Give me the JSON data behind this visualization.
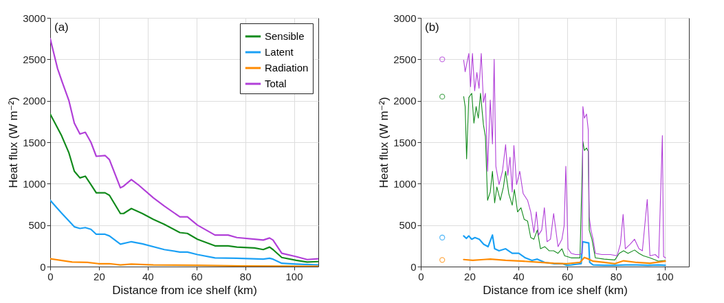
{
  "chart_data": [
    {
      "type": "line",
      "xlabel": "Distance from ice shelf (km)",
      "ylabel": "Heat flux (W m⁻²)",
      "annotations": [
        "(a)"
      ],
      "xlim": [
        0,
        110
      ],
      "ylim": [
        0,
        3000
      ],
      "xticks": [
        0,
        20,
        40,
        60,
        80,
        100
      ],
      "yticks": [
        0,
        500,
        1000,
        1500,
        2000,
        2500,
        3000
      ],
      "grid": true,
      "legend": "top right",
      "series": [
        {
          "name": "Sensible",
          "color": "#118a1b",
          "x": [
            0,
            4.5,
            7.7,
            9.9,
            12.2,
            14.4,
            16.7,
            18.9,
            22.5,
            24.3,
            28.8,
            30.1,
            33.3,
            37.8,
            42.3,
            46.8,
            53.2,
            56.3,
            60.4,
            67.6,
            73,
            76.6,
            83.8,
            87.4,
            90,
            91.4,
            95,
            100.9,
            105.4,
            109.9
          ],
          "values": [
            1840,
            1590,
            1370,
            1150,
            1070,
            1090,
            990,
            890,
            890,
            860,
            640,
            640,
            700,
            640,
            570,
            510,
            410,
            400,
            330,
            250,
            250,
            235,
            225,
            205,
            235,
            205,
            110,
            75,
            55,
            60
          ]
        },
        {
          "name": "Latent",
          "color": "#1aa0f5",
          "x": [
            0,
            4.5,
            9.9,
            12.2,
            14.4,
            16.7,
            18.9,
            22.5,
            24.3,
            28.8,
            33.3,
            37.8,
            46.8,
            53.2,
            56.3,
            60.4,
            67.6,
            76.6,
            87.4,
            90,
            91.4,
            95,
            100.9,
            109.9
          ],
          "values": [
            800,
            650,
            480,
            460,
            470,
            450,
            390,
            390,
            370,
            270,
            300,
            275,
            205,
            175,
            175,
            145,
            105,
            100,
            90,
            100,
            90,
            40,
            30,
            20
          ]
        },
        {
          "name": "Radiation",
          "color": "#ff8a00",
          "x": [
            0,
            9,
            15.3,
            19.8,
            24.3,
            28.8,
            33.3,
            42.3,
            60.4,
            78.4,
            96.4,
            109.9
          ],
          "values": [
            95,
            55,
            50,
            35,
            35,
            20,
            30,
            20,
            15,
            8,
            5,
            3
          ]
        },
        {
          "name": "Total",
          "color": "#b13fd8",
          "x": [
            0,
            3,
            5,
            7.7,
            9.9,
            12.2,
            14.4,
            16.7,
            18.9,
            22.5,
            24.3,
            28.8,
            30.1,
            33.3,
            36,
            42.3,
            46.8,
            53.2,
            56.3,
            60.4,
            67.6,
            73,
            76.6,
            83.8,
            87.4,
            90,
            91.4,
            95,
            100.9,
            105.4,
            109.9
          ],
          "values": [
            2750,
            2390,
            2220,
            2000,
            1730,
            1600,
            1620,
            1500,
            1330,
            1340,
            1290,
            950,
            970,
            1050,
            990,
            830,
            730,
            600,
            600,
            500,
            380,
            380,
            350,
            330,
            320,
            345,
            320,
            160,
            120,
            85,
            95
          ]
        }
      ]
    },
    {
      "type": "line",
      "xlabel": "Distance from ice shelf (km)",
      "ylabel": "Heat flux (W m⁻²)",
      "annotations": [
        "(b)"
      ],
      "xlim": [
        0,
        110
      ],
      "ylim": [
        0,
        3000
      ],
      "xticks": [
        0,
        20,
        40,
        60,
        80,
        100
      ],
      "yticks": [
        0,
        500,
        1000,
        1500,
        2000,
        2500,
        3000
      ],
      "grid": true,
      "series": [
        {
          "color": "#118a1b",
          "x": [
            17.6,
            18.2,
            18.8,
            19.7,
            20.9,
            21.8,
            22.7,
            23.6,
            24.5,
            25.7,
            26.5,
            27.4,
            28.5,
            29.4,
            30.3,
            31.2,
            32.6,
            33.9,
            34.8,
            36.1,
            37.5,
            38.4,
            39.7,
            41.1,
            42.4,
            43.8,
            45.1,
            46.4,
            47.8,
            49.1,
            50.9,
            52.7,
            54.5,
            56.3,
            57.9,
            59,
            61.7,
            65.3,
            66.5,
            67.1,
            68,
            68.7,
            69.1,
            70.2,
            71.6,
            75.2,
            79.6,
            81.4,
            83.2,
            85,
            87.7,
            89.5,
            91.3,
            94,
            97.6,
            100.3
          ],
          "values": [
            2050,
            1930,
            1300,
            2040,
            2090,
            1730,
            1930,
            1790,
            2090,
            1710,
            1570,
            800,
            900,
            1150,
            770,
            960,
            800,
            960,
            1150,
            880,
            740,
            930,
            660,
            710,
            570,
            550,
            350,
            330,
            440,
            215,
            240,
            190,
            190,
            160,
            215,
            130,
            105,
            105,
            1510,
            1400,
            1430,
            1390,
            440,
            330,
            105,
            90,
            80,
            160,
            190,
            160,
            200,
            160,
            130,
            105,
            65,
            75
          ]
        },
        {
          "color": "#1aa0f5",
          "x": [
            17.6,
            18.7,
            19.7,
            20.9,
            22.2,
            24,
            25.8,
            27.6,
            29.4,
            30.3,
            32.1,
            34.8,
            37.5,
            40.2,
            42.9,
            45.6,
            47.8,
            50.9,
            54.5,
            58.1,
            59.9,
            61.7,
            65.8,
            66.4,
            68.9,
            69.3,
            70.7,
            75.2,
            79.6,
            84.1,
            88.6,
            93.1,
            97.6,
            100.3
          ],
          "values": [
            370,
            340,
            370,
            330,
            350,
            330,
            270,
            240,
            380,
            215,
            190,
            215,
            160,
            160,
            105,
            75,
            90,
            50,
            35,
            35,
            15,
            20,
            35,
            300,
            285,
            50,
            20,
            15,
            15,
            20,
            20,
            15,
            20,
            15
          ]
        },
        {
          "color": "#ff8a00",
          "x": [
            17.6,
            21.3,
            25.8,
            28.5,
            34.8,
            41.9,
            49.1,
            54.5,
            59.9,
            65.3,
            67.1,
            68.9,
            70.7,
            75.2,
            79.6,
            83.2,
            88.6,
            94,
            100.3
          ],
          "values": [
            85,
            75,
            85,
            90,
            75,
            65,
            50,
            40,
            35,
            50,
            110,
            90,
            65,
            50,
            35,
            70,
            50,
            40,
            65
          ]
        },
        {
          "color": "#b13fd8",
          "x": [
            17.6,
            18.2,
            19.7,
            20.4,
            21.2,
            22.1,
            23,
            23.9,
            24.8,
            25.7,
            26.5,
            27.4,
            28.5,
            29.4,
            30.1,
            30.8,
            32.1,
            33.5,
            34.8,
            35.7,
            36.6,
            37.5,
            38.2,
            39.3,
            40.6,
            42,
            43.8,
            45.1,
            46.4,
            47.4,
            48.3,
            49.6,
            50.7,
            51.8,
            53.2,
            54.5,
            56.3,
            57.9,
            58.8,
            59.5,
            60.4,
            61.7,
            63.5,
            65.3,
            66.2,
            66.5,
            67.1,
            68,
            68.7,
            69.1,
            69.8,
            70.7,
            71.6,
            74.3,
            77.8,
            80.5,
            81.9,
            83,
            83.9,
            85.9,
            87.7,
            89.5,
            90.9,
            92.9,
            94,
            96.2,
            97.6,
            99.1,
            99.6,
            100.4
          ],
          "values": [
            2490,
            2350,
            2570,
            2170,
            2570,
            2120,
            2340,
            2150,
            2570,
            1980,
            2090,
            1150,
            2010,
            1480,
            2500,
            1210,
            990,
            1150,
            1470,
            1100,
            1320,
            900,
            1460,
            990,
            1150,
            880,
            800,
            660,
            410,
            660,
            380,
            440,
            710,
            300,
            330,
            640,
            240,
            330,
            490,
            1210,
            215,
            160,
            145,
            145,
            160,
            1930,
            1790,
            1840,
            1650,
            600,
            440,
            330,
            160,
            145,
            145,
            130,
            270,
            630,
            215,
            270,
            330,
            215,
            190,
            810,
            130,
            145,
            105,
            1580,
            120,
            105
          ]
        },
        {
          "type": "scatter",
          "marker": "circle",
          "color": "#b13fd8",
          "x": [
            8.8
          ],
          "values": [
            2500
          ]
        },
        {
          "type": "scatter",
          "marker": "circle",
          "color": "#118a1b",
          "x": [
            8.8
          ],
          "values": [
            2050
          ]
        },
        {
          "type": "scatter",
          "marker": "circle",
          "color": "#1aa0f5",
          "x": [
            8.8
          ],
          "values": [
            350
          ]
        },
        {
          "type": "scatter",
          "marker": "circle",
          "color": "#ff8a00",
          "x": [
            8.8
          ],
          "values": [
            80
          ]
        }
      ]
    }
  ]
}
